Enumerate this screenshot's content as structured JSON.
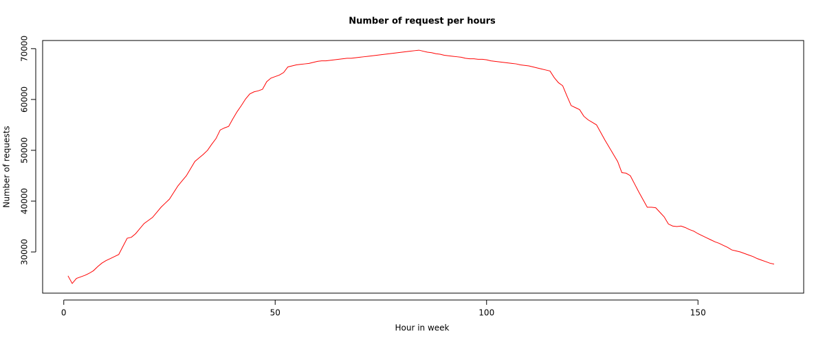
{
  "chart_data": {
    "type": "line",
    "title": "Number of request per hours",
    "x_label": "Hour in week",
    "y_label": "Number of requests",
    "color": "#ff0000",
    "x": [
      1,
      2,
      3,
      4,
      5,
      6,
      7,
      8,
      9,
      10,
      11,
      12,
      13,
      14,
      15,
      16,
      17,
      18,
      19,
      20,
      21,
      22,
      23,
      24,
      25,
      26,
      27,
      28,
      29,
      30,
      31,
      32,
      33,
      34,
      35,
      36,
      37,
      38,
      39,
      40,
      41,
      42,
      43,
      44,
      45,
      46,
      47,
      48,
      49,
      50,
      51,
      52,
      53,
      54,
      55,
      56,
      57,
      58,
      59,
      60,
      61,
      62,
      63,
      64,
      65,
      66,
      67,
      68,
      69,
      70,
      71,
      72,
      73,
      74,
      75,
      76,
      77,
      78,
      79,
      80,
      81,
      82,
      83,
      84,
      85,
      86,
      87,
      88,
      89,
      90,
      91,
      92,
      93,
      94,
      95,
      96,
      97,
      98,
      99,
      100,
      101,
      102,
      103,
      104,
      105,
      106,
      107,
      108,
      109,
      110,
      111,
      112,
      113,
      114,
      115,
      116,
      117,
      118,
      119,
      120,
      121,
      122,
      123,
      124,
      125,
      126,
      127,
      128,
      129,
      130,
      131,
      132,
      133,
      134,
      135,
      136,
      137,
      138,
      139,
      140,
      141,
      142,
      143,
      144,
      145,
      146,
      147,
      148,
      149,
      150,
      151,
      152,
      153,
      154,
      155,
      156,
      157,
      158,
      159,
      160,
      161,
      162,
      163,
      164,
      165,
      166,
      167,
      168
    ],
    "values": [
      25300,
      23800,
      24800,
      25100,
      25400,
      25800,
      26300,
      27100,
      27800,
      28300,
      28700,
      29100,
      29500,
      31100,
      32700,
      32900,
      33600,
      34600,
      35600,
      36200,
      36800,
      37800,
      38800,
      39600,
      40400,
      41700,
      43000,
      44000,
      45000,
      46400,
      47800,
      48500,
      49200,
      50000,
      51200,
      52300,
      54000,
      54400,
      54700,
      56200,
      57600,
      58800,
      60100,
      61100,
      61500,
      61700,
      62000,
      63500,
      64200,
      64500,
      64800,
      65300,
      66400,
      66600,
      66800,
      66900,
      67000,
      67100,
      67300,
      67500,
      67600,
      67600,
      67700,
      67800,
      67900,
      68000,
      68100,
      68100,
      68200,
      68300,
      68400,
      68500,
      68600,
      68700,
      68800,
      68900,
      69000,
      69100,
      69200,
      69300,
      69400,
      69500,
      69600,
      69700,
      69500,
      69300,
      69200,
      69000,
      68900,
      68700,
      68600,
      68500,
      68400,
      68300,
      68100,
      68000,
      68000,
      67900,
      67900,
      67800,
      67600,
      67500,
      67400,
      67300,
      67200,
      67100,
      67000,
      66800,
      66700,
      66600,
      66400,
      66200,
      66000,
      65800,
      65600,
      64300,
      63300,
      62700,
      60700,
      58800,
      58400,
      58000,
      56700,
      56000,
      55500,
      55000,
      53500,
      52000,
      50600,
      49200,
      47800,
      45600,
      45500,
      45000,
      43400,
      41800,
      40300,
      38800,
      38800,
      38700,
      37800,
      36900,
      35500,
      35100,
      35000,
      35100,
      34800,
      34400,
      34100,
      33600,
      33200,
      32800,
      32400,
      32000,
      31700,
      31300,
      30900,
      30400,
      30200,
      30000,
      29700,
      29400,
      29100,
      28700,
      28400,
      28100,
      27800,
      27600
    ],
    "xlim": [
      -5,
      175
    ],
    "xticks": [
      0,
      50,
      100,
      150
    ],
    "ylim": [
      21900,
      71600
    ],
    "yticks": [
      30000,
      40000,
      50000,
      60000,
      70000
    ]
  }
}
